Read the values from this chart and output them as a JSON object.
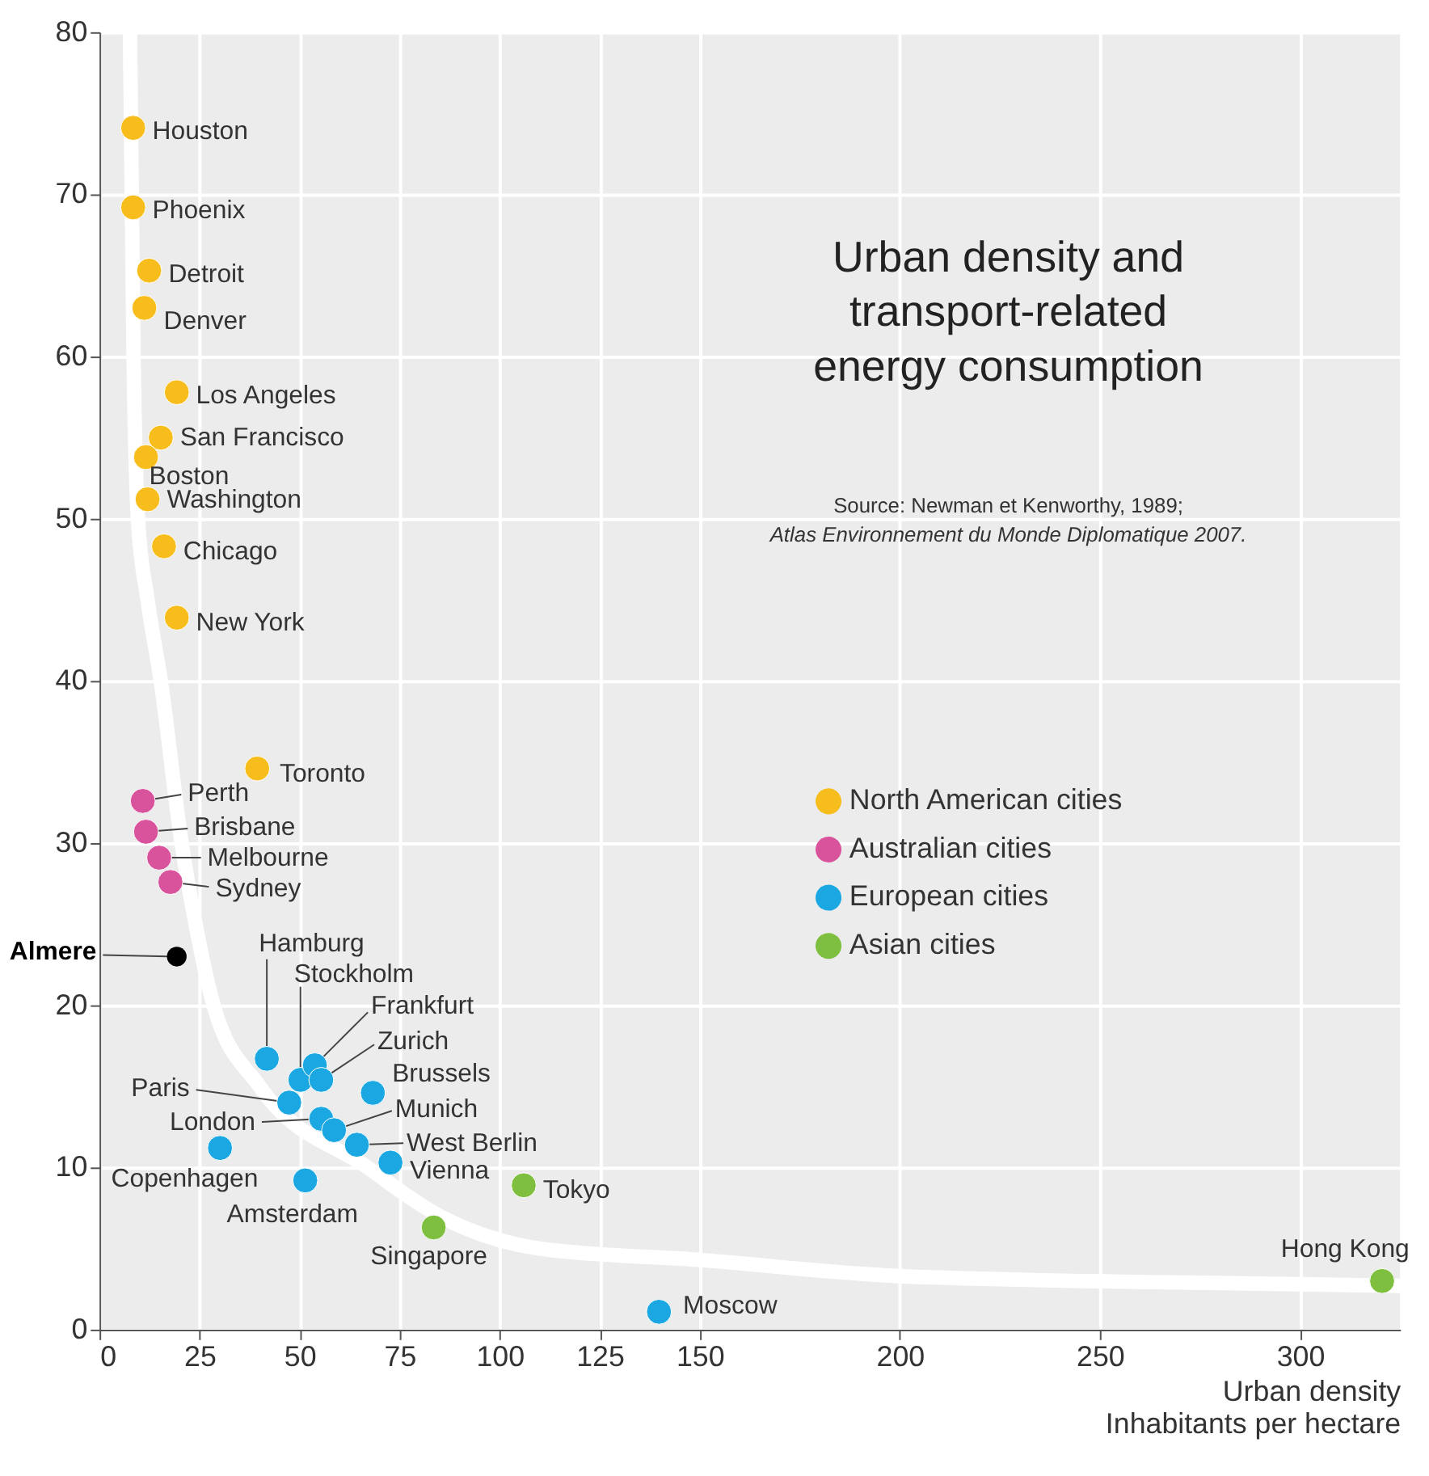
{
  "chart_data": {
    "type": "scatter",
    "title": "Urban density and\ntransport-related\nenergy consumption",
    "xlabel": "Urban density\nInhabitants per hectare",
    "xlim": [
      0,
      325
    ],
    "xticks": [
      0,
      25,
      50,
      75,
      100,
      125,
      150,
      200,
      250,
      300
    ],
    "ylim": [
      0,
      80
    ],
    "yticks": [
      0,
      10,
      20,
      30,
      40,
      50,
      60,
      70,
      80
    ],
    "grid": true,
    "legend": "right",
    "marker": "circle",
    "series": [
      {
        "name": "North American cities",
        "color": "#f7bd1c",
        "x": [
          8.4,
          8.4,
          12.4,
          11.2,
          19.3,
          15.3,
          11.6,
          12.0,
          16.1,
          19.3,
          39.4
        ],
        "values": [
          74.1,
          69.2,
          65.3,
          63.0,
          57.8,
          55.0,
          53.8,
          51.2,
          48.3,
          43.9,
          34.6
        ]
      },
      {
        "name": "Australian cities",
        "color": "#d9529c",
        "x": [
          10.8,
          11.6,
          14.9,
          17.7
        ],
        "values": [
          32.6,
          30.7,
          29.1,
          27.6
        ]
      },
      {
        "name": "European cities",
        "color": "#1ba7e1",
        "x": [
          41.8,
          50.2,
          53.8,
          55.4,
          68.3,
          47.4,
          55.4,
          58.6,
          64.3,
          72.7,
          30.1,
          51.4,
          139.8
        ],
        "values": [
          16.7,
          15.4,
          16.3,
          15.4,
          14.6,
          14.0,
          13.0,
          12.3,
          11.4,
          10.3,
          11.2,
          9.2,
          1.1
        ]
      },
      {
        "name": "Asian cities",
        "color": "#7fbf3f",
        "x": [
          83.5,
          106,
          320.5
        ],
        "values": [
          6.3,
          8.9,
          3.0
        ]
      },
      {
        "color": "#000000",
        "x": [
          19.3
        ],
        "values": [
          23.0
        ]
      },
      {
        "type": "line",
        "marker": "none",
        "color": "#ffffff",
        "x": [
          7.6,
          8.5,
          9.6,
          12,
          15.3,
          20.5,
          24,
          28.5,
          40,
          67,
          85,
          110,
          150,
          200,
          300,
          325
        ],
        "values": [
          80,
          60,
          50,
          45,
          40,
          30,
          25,
          20,
          15,
          10,
          7,
          5,
          4.3,
          3.3,
          2.8,
          2.7
        ]
      }
    ],
    "annotations": [
      "Source: Newman et Kenworthy, 1989;",
      "Atlas Environnement du Monde Diplomatique 2007.",
      {
        "text": "Houston",
        "x": 8.4,
        "y": 74.1
      },
      {
        "text": "Phoenix",
        "x": 8.4,
        "y": 69.2
      },
      {
        "text": "Detroit",
        "x": 12.4,
        "y": 65.3
      },
      {
        "text": "Denver",
        "x": 11.2,
        "y": 63.0
      },
      {
        "text": "Los Angeles",
        "x": 19.3,
        "y": 57.8
      },
      {
        "text": "San Francisco",
        "x": 15.3,
        "y": 55.0
      },
      {
        "text": "Boston",
        "x": 11.6,
        "y": 53.8
      },
      {
        "text": "Washington",
        "x": 12.0,
        "y": 51.2
      },
      {
        "text": "Chicago",
        "x": 16.1,
        "y": 48.3
      },
      {
        "text": "New York",
        "x": 19.3,
        "y": 43.9
      },
      {
        "text": "Toronto",
        "x": 39.4,
        "y": 34.6
      },
      {
        "text": "Perth",
        "x": 10.8,
        "y": 32.6
      },
      {
        "text": "Brisbane",
        "x": 11.6,
        "y": 30.7
      },
      {
        "text": "Melbourne",
        "x": 14.9,
        "y": 29.1
      },
      {
        "text": "Sydney",
        "x": 17.7,
        "y": 27.6
      },
      {
        "text": "Almere",
        "x": 19.3,
        "y": 23.0
      },
      {
        "text": "Hamburg",
        "x": 41.8,
        "y": 16.7
      },
      {
        "text": "Stockholm",
        "x": 50.2,
        "y": 15.4
      },
      {
        "text": "Frankfurt",
        "x": 53.8,
        "y": 16.3
      },
      {
        "text": "Zurich",
        "x": 55.4,
        "y": 15.4
      },
      {
        "text": "Brussels",
        "x": 68.3,
        "y": 14.6
      },
      {
        "text": "Paris",
        "x": 47.4,
        "y": 14.0
      },
      {
        "text": "London",
        "x": 55.4,
        "y": 13.0
      },
      {
        "text": "Munich",
        "x": 58.6,
        "y": 12.3
      },
      {
        "text": "West Berlin",
        "x": 64.3,
        "y": 11.4
      },
      {
        "text": "Vienna",
        "x": 72.7,
        "y": 10.3
      },
      {
        "text": "Copenhagen",
        "x": 30.1,
        "y": 11.2
      },
      {
        "text": "Amsterdam",
        "x": 51.4,
        "y": 9.2
      },
      {
        "text": "Singapore",
        "x": 83.5,
        "y": 6.3
      },
      {
        "text": "Tokyo",
        "x": 106,
        "y": 8.9
      },
      {
        "text": "Moscow",
        "x": 139.8,
        "y": 1.1
      },
      {
        "text": "Hong Kong",
        "x": 320.5,
        "y": 3.0
      }
    ]
  }
}
